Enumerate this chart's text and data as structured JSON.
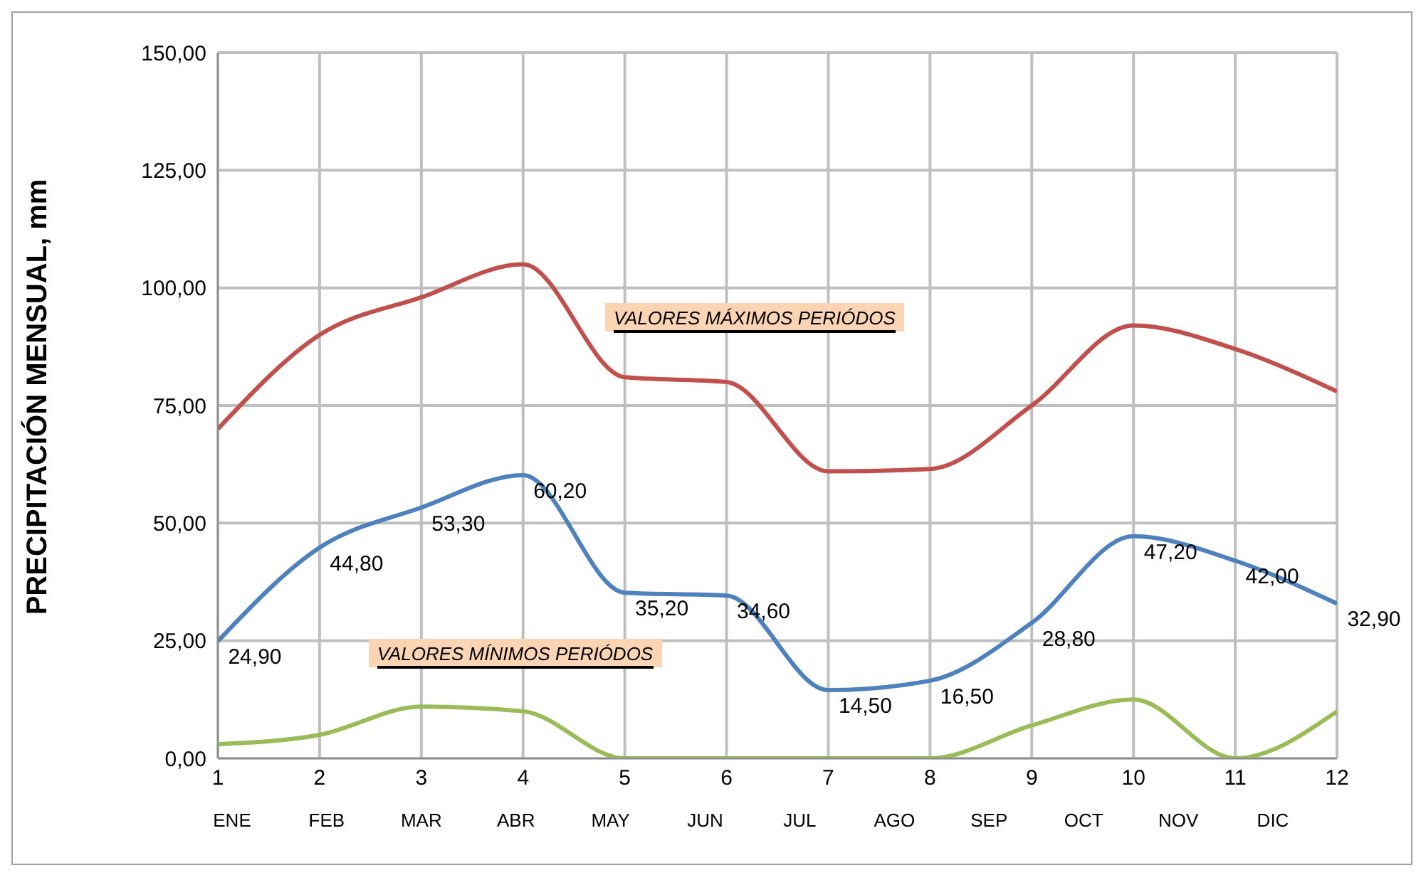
{
  "chart_data": {
    "type": "line",
    "ylabel": "PRECIPITACIÓN MENSUAL, mm",
    "x": [
      1,
      2,
      3,
      4,
      5,
      6,
      7,
      8,
      9,
      10,
      11,
      12
    ],
    "series": [
      {
        "name": "VALORES MÁXIMOS PERIÓDOS",
        "color": "#c0504d",
        "values": [
          70,
          90,
          98,
          105,
          81,
          80,
          61,
          61.5,
          75,
          92,
          87,
          78
        ]
      },
      {
        "color": "#4f81bd",
        "values": [
          24.9,
          44.8,
          53.3,
          60.2,
          35.2,
          34.6,
          14.5,
          16.5,
          28.8,
          47.2,
          42.0,
          32.9
        ],
        "value_labels": [
          "24,90",
          "44,80",
          "53,30",
          "60,20",
          "35,20",
          "34,60",
          "14,50",
          "16,50",
          "28,80",
          "47,20",
          "42,00",
          "32,90"
        ]
      },
      {
        "name": "VALORES MÍNIMOS PERIÓDOS",
        "color": "#9bbb59",
        "values": [
          3,
          5,
          11,
          10,
          0,
          0,
          0,
          0,
          7,
          12.5,
          0,
          10
        ]
      }
    ],
    "xlim": [
      1,
      12
    ],
    "xticks": [
      1,
      2,
      3,
      4,
      5,
      6,
      7,
      8,
      9,
      10,
      11,
      12
    ],
    "annotations": [
      "ENE",
      "FEB",
      "MAR",
      "ABR",
      "MAY",
      "JUN",
      "JUL",
      "AGO",
      "SEP",
      "OCT",
      "NOV",
      "DIC"
    ],
    "ylim": [
      0,
      150
    ],
    "yticks": [
      {
        "value": 0,
        "label": "0,00"
      },
      {
        "value": 25,
        "label": "25,00"
      },
      {
        "value": 50,
        "label": "50,00"
      },
      {
        "value": 75,
        "label": "75,00"
      },
      {
        "value": 100,
        "label": "100,00"
      },
      {
        "value": 125,
        "label": "125,00"
      },
      {
        "value": 150,
        "label": "150,00"
      }
    ],
    "grid": true,
    "marker": "none",
    "line_style": "solid"
  }
}
